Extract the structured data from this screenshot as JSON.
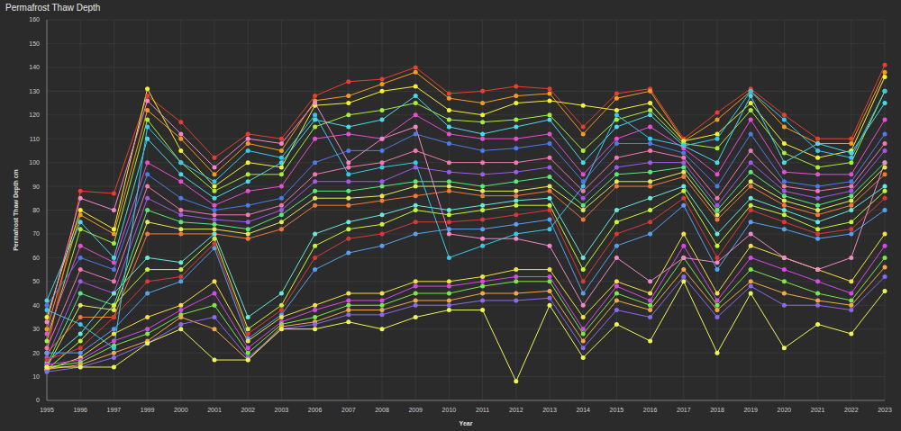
{
  "chart_data": {
    "type": "line",
    "title": "Permafrost Thaw Depth",
    "x_label": "Year",
    "y_label": "Permafrost Thaw Depth cm",
    "categories": [
      "1995",
      "1996",
      "1997",
      "1999",
      "2000",
      "2001",
      "2002",
      "2003",
      "2006",
      "2007",
      "2008",
      "2009",
      "2010",
      "2011",
      "2012",
      "2013",
      "2014",
      "2015",
      "2016",
      "2017",
      "2018",
      "2019",
      "2020",
      "2021",
      "2022",
      "2023"
    ],
    "series": [
      {
        "color": "#e8402f",
        "values": [
          20,
          88,
          87,
          128,
          117,
          102,
          112,
          110,
          128,
          134,
          135,
          140,
          129,
          130,
          132,
          131,
          115,
          129,
          131,
          110,
          121,
          131,
          120,
          110,
          110,
          141
        ]
      },
      {
        "color": "#f59b23",
        "values": [
          30,
          78,
          70,
          122,
          110,
          95,
          108,
          105,
          126,
          128,
          133,
          138,
          127,
          125,
          128,
          129,
          112,
          127,
          130,
          109,
          118,
          130,
          115,
          108,
          108,
          138
        ]
      },
      {
        "color": "#f5f03a",
        "values": [
          35,
          80,
          72,
          131,
          105,
          90,
          100,
          98,
          124,
          125,
          130,
          132,
          122,
          120,
          125,
          126,
          124,
          122,
          125,
          109,
          112,
          125,
          108,
          102,
          105,
          136
        ]
      },
      {
        "color": "#a8ee3a",
        "values": [
          25,
          72,
          66,
          118,
          100,
          88,
          95,
          95,
          115,
          120,
          122,
          125,
          118,
          117,
          118,
          120,
          105,
          118,
          122,
          108,
          106,
          122,
          104,
          98,
          100,
          130
        ]
      },
      {
        "color": "#4fd8e8",
        "values": [
          42,
          75,
          60,
          110,
          95,
          85,
          92,
          100,
          118,
          115,
          118,
          128,
          115,
          112,
          115,
          118,
          100,
          115,
          120,
          107,
          100,
          128,
          100,
          108,
          104,
          125
        ]
      },
      {
        "color": "#e84fd0",
        "values": [
          28,
          65,
          58,
          100,
          92,
          82,
          88,
          90,
          110,
          112,
          110,
          120,
          112,
          110,
          110,
          112,
          95,
          110,
          115,
          106,
          95,
          118,
          96,
          95,
          95,
          118
        ]
      },
      {
        "color": "#4f7be8",
        "values": [
          40,
          60,
          55,
          95,
          85,
          80,
          82,
          85,
          100,
          105,
          105,
          112,
          108,
          105,
          106,
          108,
          92,
          108,
          108,
          104,
          90,
          112,
          92,
          90,
          92,
          112
        ]
      },
      {
        "color": "#f07ab0",
        "values": [
          22,
          55,
          50,
          90,
          80,
          78,
          78,
          82,
          95,
          98,
          100,
          105,
          100,
          100,
          100,
          102,
          88,
          102,
          105,
          102,
          85,
          105,
          90,
          88,
          90,
          108
        ]
      },
      {
        "color": "#a05ae8",
        "values": [
          18,
          50,
          45,
          85,
          78,
          76,
          75,
          80,
          92,
          92,
          92,
          98,
          96,
          95,
          96,
          98,
          85,
          98,
          100,
          100,
          82,
          100,
          88,
          85,
          88,
          105
        ]
      },
      {
        "color": "#5be87a",
        "values": [
          15,
          45,
          40,
          80,
          75,
          74,
          72,
          78,
          88,
          88,
          90,
          92,
          92,
          90,
          92,
          94,
          82,
          95,
          96,
          98,
          80,
          96,
          86,
          82,
          86,
          100
        ]
      },
      {
        "color": "#e6e85a",
        "values": [
          14,
          40,
          38,
          75,
          72,
          72,
          70,
          75,
          85,
          85,
          86,
          90,
          90,
          88,
          88,
          90,
          80,
          92,
          92,
          96,
          78,
          92,
          84,
          80,
          84,
          98
        ]
      },
      {
        "color": "#f07a3a",
        "values": [
          20,
          35,
          35,
          70,
          70,
          70,
          68,
          72,
          82,
          82,
          84,
          86,
          88,
          86,
          86,
          88,
          76,
          90,
          90,
          94,
          76,
          90,
          82,
          78,
          82,
          95
        ]
      },
      {
        "color": "#6ae8d8",
        "values": [
          16,
          28,
          45,
          60,
          58,
          70,
          35,
          45,
          70,
          75,
          78,
          82,
          80,
          82,
          84,
          85,
          60,
          80,
          85,
          90,
          70,
          85,
          80,
          75,
          80,
          90
        ]
      },
      {
        "color": "#c8f53a",
        "values": [
          13,
          25,
          40,
          55,
          55,
          68,
          30,
          40,
          65,
          72,
          74,
          80,
          78,
          80,
          82,
          82,
          55,
          75,
          80,
          88,
          65,
          82,
          78,
          72,
          75,
          88
        ]
      },
      {
        "color": "#d83a3a",
        "values": [
          17,
          22,
          35,
          50,
          52,
          66,
          28,
          38,
          60,
          68,
          70,
          75,
          75,
          76,
          78,
          80,
          50,
          70,
          75,
          85,
          60,
          80,
          75,
          70,
          72,
          85
        ]
      },
      {
        "color": "#5aa0f0",
        "values": [
          20,
          20,
          30,
          45,
          50,
          64,
          26,
          36,
          55,
          62,
          65,
          70,
          72,
          72,
          74,
          76,
          45,
          65,
          70,
          82,
          55,
          75,
          72,
          68,
          70,
          80
        ]
      },
      {
        "color": "#f5e04a",
        "values": [
          13,
          18,
          28,
          35,
          40,
          50,
          25,
          35,
          40,
          45,
          45,
          50,
          50,
          52,
          55,
          55,
          35,
          50,
          45,
          70,
          45,
          65,
          60,
          55,
          50,
          70
        ]
      },
      {
        "color": "#d84ae8",
        "values": [
          15,
          17,
          25,
          30,
          38,
          45,
          22,
          33,
          38,
          42,
          42,
          48,
          48,
          50,
          52,
          52,
          30,
          48,
          42,
          65,
          42,
          60,
          55,
          50,
          45,
          65
        ]
      },
      {
        "color": "#7ae84a",
        "values": [
          14,
          16,
          23,
          28,
          36,
          40,
          20,
          32,
          35,
          40,
          40,
          45,
          45,
          48,
          50,
          50,
          28,
          45,
          40,
          60,
          40,
          55,
          50,
          45,
          42,
          60
        ]
      },
      {
        "color": "#f5a84a",
        "values": [
          13,
          15,
          20,
          25,
          35,
          30,
          17,
          31,
          33,
          38,
          38,
          42,
          42,
          45,
          45,
          46,
          25,
          42,
          38,
          55,
          38,
          50,
          45,
          42,
          40,
          56
        ]
      },
      {
        "color": "#8a6af0",
        "values": [
          12,
          14,
          18,
          24,
          32,
          35,
          18,
          30,
          32,
          36,
          36,
          40,
          40,
          42,
          42,
          43,
          22,
          38,
          35,
          52,
          35,
          48,
          40,
          40,
          38,
          52
        ]
      },
      {
        "color": "#eef55a",
        "values": [
          14,
          14,
          14,
          24,
          30,
          17,
          17,
          30,
          30,
          33,
          30,
          35,
          38,
          38,
          8,
          40,
          18,
          32,
          25,
          50,
          20,
          45,
          22,
          32,
          28,
          46
        ]
      },
      {
        "color": "#3ac8e8",
        "values": [
          38,
          32,
          22,
          115,
          100,
          92,
          105,
          102,
          120,
          95,
          98,
          100,
          60,
          65,
          70,
          72,
          90,
          120,
          110,
          107,
          110,
          130,
          118,
          105,
          102,
          130
        ]
      },
      {
        "color": "#f08ac8",
        "values": [
          33,
          85,
          80,
          126,
          112,
          98,
          110,
          108,
          125,
          100,
          110,
          115,
          70,
          68,
          68,
          65,
          40,
          60,
          50,
          60,
          58,
          70,
          60,
          55,
          60,
          100
        ]
      }
    ],
    "ylim": [
      0,
      160
    ],
    "yticks": [
      0,
      10,
      20,
      30,
      40,
      50,
      60,
      70,
      80,
      90,
      100,
      110,
      120,
      130,
      140,
      150,
      160
    ],
    "grid": true,
    "marker": "circle"
  }
}
